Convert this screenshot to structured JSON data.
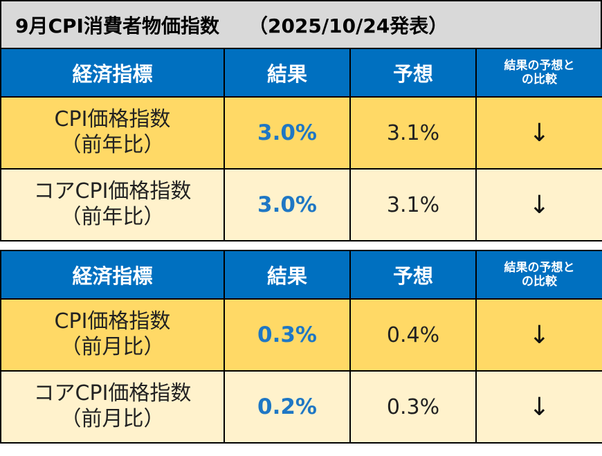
{
  "title": "9月CPI消費者物価指数　　（2025/10/24発表）",
  "headers": {
    "indicator": "経済指標",
    "result": "結果",
    "forecast": "予想",
    "comparison_line1": "結果の予想と",
    "comparison_line2": "の比較"
  },
  "tables": [
    {
      "rows": [
        {
          "name_line1": "CPI価格指数",
          "name_line2": "（前年比）",
          "result": "3.0%",
          "forecast": "3.1%",
          "comparison": "↓"
        },
        {
          "name_line1": "コアCPI価格指数",
          "name_line2": "（前年比）",
          "result": "3.0%",
          "forecast": "3.1%",
          "comparison": "↓"
        }
      ]
    },
    {
      "rows": [
        {
          "name_line1": "CPI価格指数",
          "name_line2": "（前月比）",
          "result": "0.3%",
          "forecast": "0.4%",
          "comparison": "↓"
        },
        {
          "name_line1": "コアCPI価格指数",
          "name_line2": "（前月比）",
          "result": "0.2%",
          "forecast": "0.3%",
          "comparison": "↓"
        }
      ]
    }
  ],
  "colors": {
    "header_bg": "#0070c0",
    "row_dark_bg": "#ffd966",
    "row_light_bg": "#fff2cc",
    "title_bg": "#d9d9d9",
    "result_text": "#1f77c4"
  }
}
